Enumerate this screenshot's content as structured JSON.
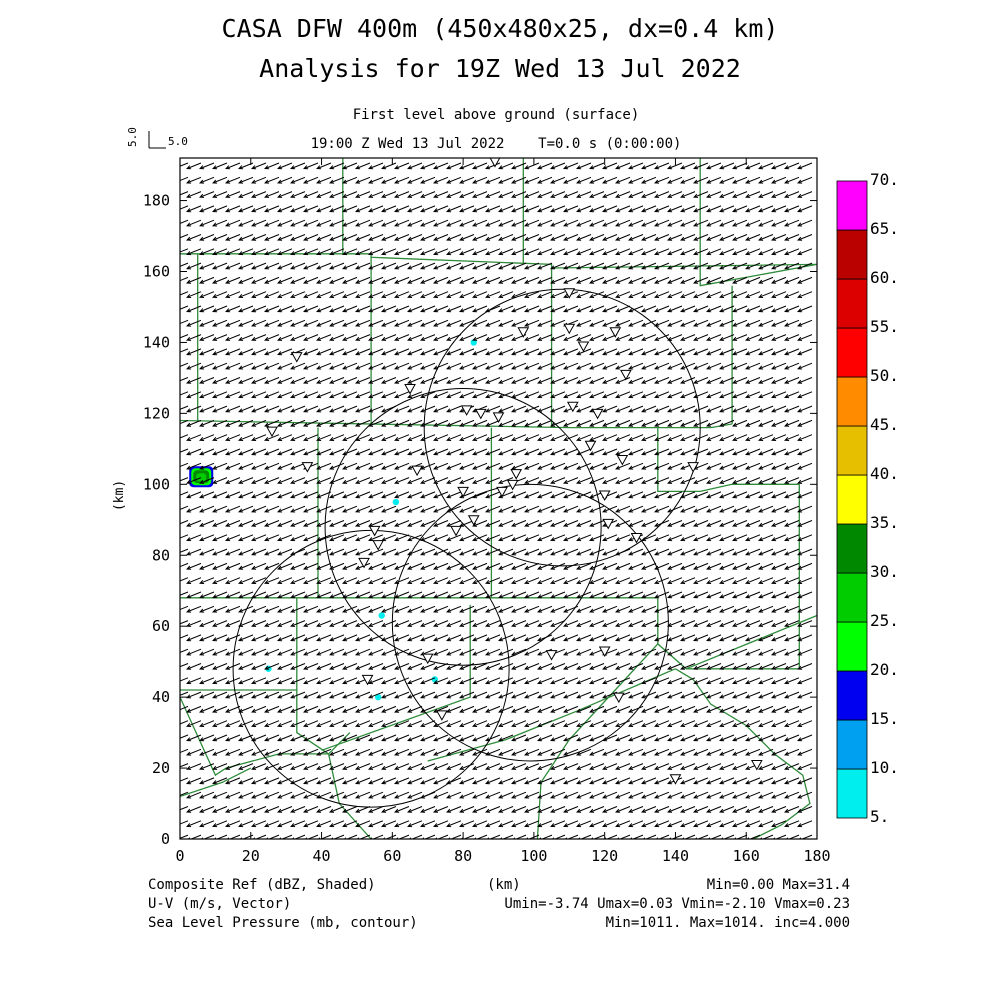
{
  "header": {
    "title_line1": "CASA DFW 400m (450x480x25, dx=0.4 km)",
    "title_line2": "Analysis for 19Z Wed 13 Jul 2022",
    "subtitle": "First level above ground (surface)",
    "time_line": "19:00 Z Wed 13 Jul 2022    T=0.0 s (0:00:00)",
    "vector_ref_label": "5.0",
    "vector_ref_label_rotated": "5.0"
  },
  "footer": {
    "left_1": "Composite Ref (dBZ, Shaded)",
    "left_2": "U-V (m/s, Vector)",
    "left_3": "Sea Level Pressure (mb, contour)",
    "center_1": "(km)",
    "right_1": "Min=0.00 Max=31.4",
    "right_2": "Umin=-3.74 Umax=0.03 Vmin=-2.10 Vmax=0.23",
    "right_3": "Min=1011. Max=1014. inc=4.000"
  },
  "colors": {
    "map_lines": "#2e8b3a",
    "contours": "#000000",
    "echo_cyan": "#00e5e5",
    "echo_green": "#22aa22"
  },
  "chart_data": {
    "type": "heatmap",
    "xlabel": "(km)",
    "ylabel": "(km)",
    "xlim": [
      0,
      180
    ],
    "ylim": [
      0,
      192
    ],
    "xticks": [
      "0",
      "20",
      "40",
      "60",
      "80",
      "100",
      "120",
      "140",
      "160",
      "180"
    ],
    "yticks": [
      "0",
      "20",
      "40",
      "60",
      "80",
      "100",
      "120",
      "140",
      "160",
      "180"
    ],
    "colorbar": {
      "labels": [
        "5.",
        "10.",
        "15.",
        "20.",
        "25.",
        "30.",
        "35.",
        "40.",
        "45.",
        "50.",
        "55.",
        "60.",
        "65.",
        "70."
      ],
      "colors": [
        "#00eeee",
        "#00a0f0",
        "#0000f0",
        "#00ff00",
        "#00cc00",
        "#008800",
        "#ffff00",
        "#e6c000",
        "#ff8c00",
        "#ff0000",
        "#dd0000",
        "#bb0000",
        "#ff00ff"
      ]
    },
    "wind_vector": {
      "u": -2.5,
      "v": -1.0,
      "reference_mps": 5.0
    },
    "radar_range_rings_km": [
      {
        "center": [
          108,
          116
        ],
        "radius": 39
      },
      {
        "center": [
          80,
          88
        ],
        "radius": 39
      },
      {
        "center": [
          54,
          48
        ],
        "radius": 39
      },
      {
        "center": [
          99,
          61
        ],
        "radius": 39
      }
    ],
    "stations_km": [
      [
        89,
        191
      ],
      [
        110,
        154
      ],
      [
        97,
        143
      ],
      [
        110,
        144
      ],
      [
        123,
        143
      ],
      [
        114,
        139
      ],
      [
        126,
        131
      ],
      [
        33,
        136
      ],
      [
        65,
        127
      ],
      [
        81,
        121
      ],
      [
        85,
        120
      ],
      [
        90,
        119
      ],
      [
        111,
        122
      ],
      [
        118,
        120
      ],
      [
        26,
        115
      ],
      [
        116,
        111
      ],
      [
        125,
        107
      ],
      [
        145,
        105
      ],
      [
        36,
        105
      ],
      [
        67,
        104
      ],
      [
        95,
        103
      ],
      [
        80,
        98
      ],
      [
        91,
        98
      ],
      [
        94,
        100
      ],
      [
        120,
        97
      ],
      [
        83,
        90
      ],
      [
        78,
        87
      ],
      [
        121,
        89
      ],
      [
        129,
        85
      ],
      [
        55,
        87
      ],
      [
        56,
        83
      ],
      [
        52,
        78
      ],
      [
        70,
        51
      ],
      [
        105,
        52
      ],
      [
        120,
        53
      ],
      [
        53,
        45
      ],
      [
        124,
        40
      ],
      [
        74,
        35
      ],
      [
        140,
        17
      ],
      [
        163,
        21
      ]
    ],
    "echoes": [
      {
        "label": "30",
        "center": [
          6,
          102
        ]
      },
      {
        "label": "5",
        "center": [
          83,
          140
        ]
      },
      {
        "label": "5",
        "center": [
          57,
          63
        ]
      },
      {
        "label": "5",
        "center": [
          56,
          40
        ]
      },
      {
        "label": "5",
        "center": [
          25,
          48
        ]
      },
      {
        "label": "5",
        "center": [
          72,
          45
        ]
      },
      {
        "label": "5",
        "center": [
          61,
          95
        ]
      }
    ]
  }
}
